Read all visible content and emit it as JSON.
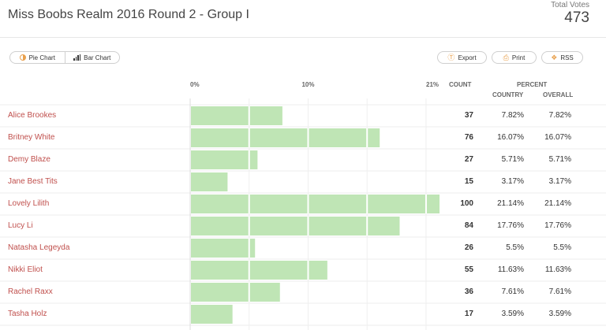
{
  "header": {
    "title": "Miss Boobs Realm 2016 Round 2 - Group I",
    "total_label": "Total Votes",
    "total_value": "473"
  },
  "view_toggle": {
    "pie_label": "Pie Chart",
    "bar_label": "Bar Chart",
    "pie_icon": "pie-chart-icon",
    "bar_icon": "bar-chart-icon"
  },
  "actions": {
    "export_label": "Export",
    "print_label": "Print",
    "rss_label": "RSS",
    "export_icon": "export-icon",
    "print_icon": "print-icon",
    "rss_icon": "rss-icon"
  },
  "columns": {
    "count": "COUNT",
    "percent": "PERCENT",
    "country": "COUNTRY",
    "overall": "OVERALL"
  },
  "colors": {
    "bar": "#bfe5b5",
    "bar_highlight": "#a3d895",
    "name": "#c0504d",
    "accent": "#e8a04d"
  },
  "chart_data": {
    "type": "bar",
    "orientation": "horizontal",
    "tick_labels": [
      "0%",
      "10%",
      "21%"
    ],
    "xlim": [
      0,
      21.14
    ],
    "grid": true,
    "categories": [
      "Alice Brookes",
      "Britney White",
      "Demy Blaze",
      "Jane Best Tits",
      "Lovely Lilith",
      "Lucy Li",
      "Natasha Legeyda",
      "Nikki Eliot",
      "Rachel Raxx",
      "Tasha Holz"
    ],
    "series": [
      {
        "values": [
          7.82,
          16.07,
          5.71,
          3.17,
          21.14,
          17.76,
          5.5,
          11.63,
          7.61,
          3.59
        ]
      }
    ],
    "rows": [
      {
        "name": "Alice Brookes",
        "count": "37",
        "country": "7.82%",
        "overall": "7.82%"
      },
      {
        "name": "Britney White",
        "count": "76",
        "country": "16.07%",
        "overall": "16.07%"
      },
      {
        "name": "Demy Blaze",
        "count": "27",
        "country": "5.71%",
        "overall": "5.71%"
      },
      {
        "name": "Jane Best Tits",
        "count": "15",
        "country": "3.17%",
        "overall": "3.17%"
      },
      {
        "name": "Lovely Lilith",
        "count": "100",
        "country": "21.14%",
        "overall": "21.14%"
      },
      {
        "name": "Lucy Li",
        "count": "84",
        "country": "17.76%",
        "overall": "17.76%"
      },
      {
        "name": "Natasha Legeyda",
        "count": "26",
        "country": "5.5%",
        "overall": "5.5%"
      },
      {
        "name": "Nikki Eliot",
        "count": "55",
        "country": "11.63%",
        "overall": "11.63%"
      },
      {
        "name": "Rachel Raxx",
        "count": "36",
        "country": "7.61%",
        "overall": "7.61%"
      },
      {
        "name": "Tasha Holz",
        "count": "17",
        "country": "3.59%",
        "overall": "3.59%"
      }
    ]
  }
}
